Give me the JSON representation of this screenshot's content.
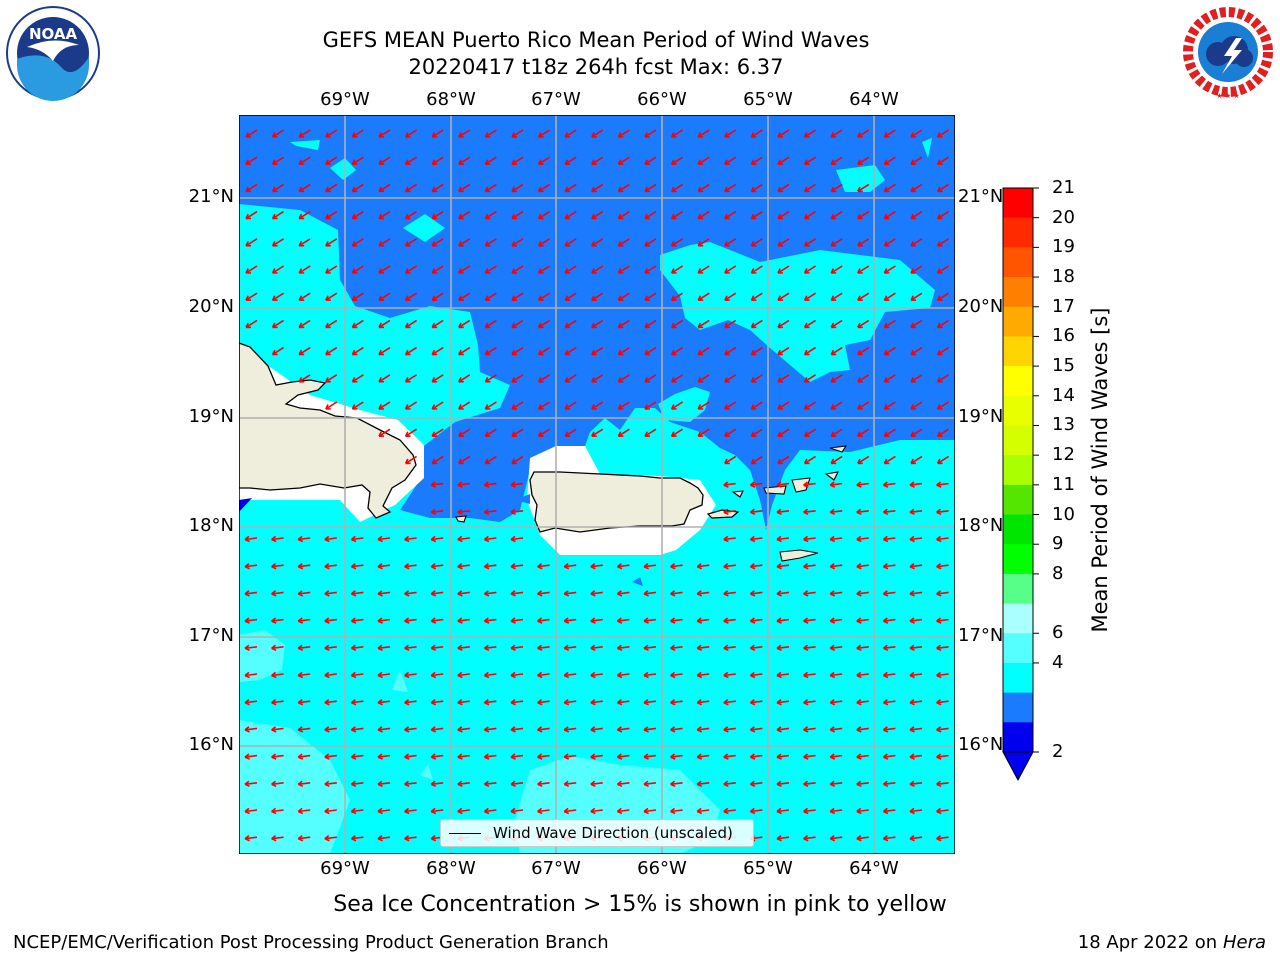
{
  "header": {
    "title_line1": "GEFS MEAN Puerto Rico Mean Period of Wind Waves",
    "title_line2": "20220417 t18z 264h fcst   Max: 6.37"
  },
  "map": {
    "lon_labels": [
      "69°W",
      "68°W",
      "67°W",
      "66°W",
      "65°W",
      "64°W"
    ],
    "lat_labels": [
      "21°N",
      "20°N",
      "19°N",
      "18°N",
      "17°N",
      "16°N"
    ],
    "land_color": "#efeedd",
    "ocean_colors": {
      "period_2_4": "#1a7bff",
      "period_4_6": "#00ffff",
      "period_6_8": "#55ffff"
    },
    "arrow_color": "#ff0000",
    "arrow_direction": "toward west-southwest"
  },
  "legend": {
    "label": "Wind Wave Direction (unscaled)"
  },
  "colorbar": {
    "label": "Mean Period of Wind Waves [s]",
    "ticks": [
      "21",
      "20",
      "19",
      "18",
      "17",
      "16",
      "15",
      "14",
      "13",
      "12",
      "11",
      "10",
      "9",
      "8",
      "6",
      "4",
      "2"
    ],
    "colors": [
      "#ff0000",
      "#ff2a00",
      "#ff5500",
      "#ff8000",
      "#ffaa00",
      "#ffd400",
      "#ffff00",
      "#e8ff00",
      "#d4ff00",
      "#aaff00",
      "#55e600",
      "#00e600",
      "#00ff00",
      "#55ff88",
      "#aaffff",
      "#55ffff",
      "#00ffff",
      "#1a7bff",
      "#0000ee"
    ],
    "extend": "min"
  },
  "subtitle": "Sea Ice Concentration > 15% is shown in pink to yellow",
  "footer": {
    "left": "NCEP/EMC/Verification Post Processing Product Generation Branch",
    "date": "18 Apr 2022 on ",
    "machine": "Hera"
  },
  "logos": {
    "noaa": "NOAA",
    "nws": "NATIONAL WEATHER SERVICE"
  }
}
